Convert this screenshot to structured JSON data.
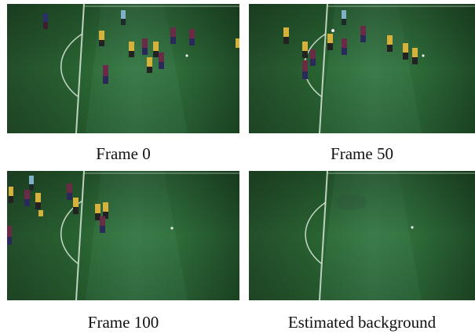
{
  "figure": {
    "panels": [
      {
        "caption": "Frame 0"
      },
      {
        "caption": "Frame 50"
      },
      {
        "caption": "Frame 100"
      },
      {
        "caption": "Estimated background"
      }
    ]
  }
}
